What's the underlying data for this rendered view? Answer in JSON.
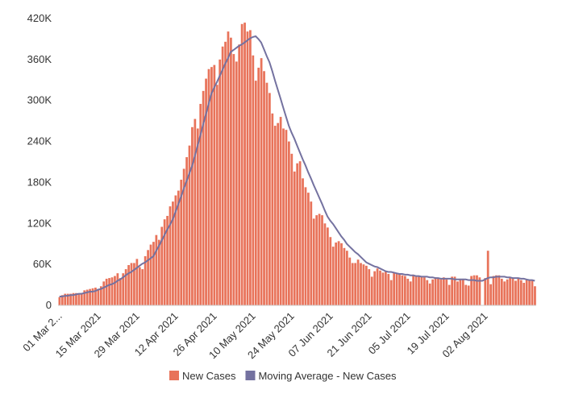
{
  "chart_data": {
    "type": "bar",
    "categories": [
      "01 Mar 2...",
      null,
      null,
      null,
      null,
      null,
      null,
      null,
      null,
      null,
      null,
      null,
      null,
      null,
      "15 Mar 2021",
      null,
      null,
      null,
      null,
      null,
      null,
      null,
      null,
      null,
      null,
      null,
      null,
      null,
      "29 Mar 2021",
      null,
      null,
      null,
      null,
      null,
      null,
      null,
      null,
      null,
      null,
      null,
      null,
      null,
      "12 Apr 2021",
      null,
      null,
      null,
      null,
      null,
      null,
      null,
      null,
      null,
      null,
      null,
      null,
      null,
      "26 Apr 2021",
      null,
      null,
      null,
      null,
      null,
      null,
      null,
      null,
      null,
      null,
      null,
      null,
      null,
      "10 May 2021",
      null,
      null,
      null,
      null,
      null,
      null,
      null,
      null,
      null,
      null,
      null,
      null,
      null,
      "24 May 2021",
      null,
      null,
      null,
      null,
      null,
      null,
      null,
      null,
      null,
      null,
      null,
      null,
      null,
      "07 Jun 2021",
      null,
      null,
      null,
      null,
      null,
      null,
      null,
      null,
      null,
      null,
      null,
      null,
      null,
      "21 Jun 2021",
      null,
      null,
      null,
      null,
      null,
      null,
      null,
      null,
      null,
      null,
      null,
      null,
      null,
      "05 Jul 2021",
      null,
      null,
      null,
      null,
      null,
      null,
      null,
      null,
      null,
      null,
      null,
      null,
      null,
      "19 Jul 2021",
      null,
      null,
      null,
      null,
      null,
      null,
      null,
      null,
      null,
      null,
      null,
      null,
      null,
      "02 Aug 2021",
      null,
      null,
      null,
      null,
      null,
      null,
      null,
      null,
      null,
      null,
      null,
      null,
      null,
      null,
      null,
      null,
      null,
      null
    ],
    "series": [
      {
        "name": "New Cases",
        "type": "bar",
        "color": "#e8735a",
        "values": [
          12000,
          15000,
          17000,
          17000,
          17000,
          18000,
          18000,
          16000,
          18000,
          22000,
          23000,
          24000,
          25000,
          26000,
          24000,
          28000,
          35000,
          39000,
          40000,
          41000,
          43000,
          47000,
          40000,
          47000,
          53000,
          59000,
          62000,
          62000,
          68000,
          56000,
          53000,
          72000,
          81000,
          89000,
          93000,
          103000,
          96000,
          115000,
          126000,
          131000,
          145000,
          152000,
          161000,
          168000,
          184000,
          200000,
          217000,
          234000,
          261000,
          273000,
          259000,
          295000,
          314000,
          332000,
          346000,
          349000,
          352000,
          323000,
          360000,
          379000,
          386000,
          401000,
          392000,
          368000,
          357000,
          382000,
          412000,
          414000,
          401000,
          403000,
          366000,
          329000,
          348000,
          362000,
          343000,
          326000,
          311000,
          281000,
          263000,
          267000,
          276000,
          259000,
          257000,
          240000,
          222000,
          196000,
          208000,
          211000,
          186000,
          173000,
          165000,
          152000,
          127000,
          132000,
          134000,
          132000,
          120000,
          114000,
          100000,
          86000,
          92000,
          94000,
          91000,
          84000,
          80000,
          70000,
          62000,
          62000,
          67000,
          62000,
          60000,
          58000,
          53000,
          42000,
          50000,
          54000,
          51000,
          48000,
          50000,
          46000,
          37000,
          48000,
          46000,
          47000,
          44000,
          43000,
          39000,
          35000,
          45000,
          43000,
          43000,
          42000,
          41000,
          37000,
          32000,
          38000,
          41000,
          39000,
          38000,
          41000,
          38000,
          30000,
          42000,
          42000,
          35000,
          39000,
          39000,
          30000,
          29000,
          43000,
          44000,
          44000,
          41000,
          0,
          40000,
          80000,
          31000,
          43000,
          44000,
          44000,
          39000,
          35000,
          38000,
          41000,
          40000,
          36000,
          40000,
          37000,
          33000,
          38000,
          37000,
          36000,
          28000
        ]
      },
      {
        "name": "Moving Average - New Cases",
        "type": "line",
        "color": "#7472a0",
        "values": [
          13000,
          13000,
          14000,
          14000,
          15000,
          15000,
          16000,
          17000,
          17000,
          18000,
          19000,
          20000,
          20000,
          21000,
          23000,
          24000,
          26000,
          28000,
          30000,
          31000,
          33000,
          36000,
          38000,
          41000,
          44000,
          47000,
          49000,
          52000,
          55000,
          58000,
          61000,
          63000,
          66000,
          69000,
          72000,
          80000,
          87000,
          95000,
          103000,
          111000,
          118000,
          126000,
          137000,
          148000,
          159000,
          171000,
          182000,
          193000,
          204000,
          219000,
          234000,
          249000,
          265000,
          280000,
          295000,
          310000,
          319000,
          327000,
          336000,
          345000,
          354000,
          362000,
          371000,
          374000,
          377000,
          380000,
          382000,
          385000,
          388000,
          391000,
          393000,
          394000,
          390000,
          385000,
          375000,
          365000,
          356000,
          343000,
          329000,
          316000,
          303000,
          289000,
          276000,
          263000,
          253000,
          244000,
          234000,
          224000,
          214000,
          205000,
          195000,
          186000,
          176000,
          167000,
          158000,
          149000,
          139000,
          130000,
          124000,
          119000,
          113000,
          107000,
          101000,
          96000,
          90000,
          86000,
          82000,
          78000,
          75000,
          71000,
          67000,
          63000,
          61000,
          59000,
          57000,
          56000,
          54000,
          52000,
          50000,
          49000,
          49000,
          48000,
          47000,
          46000,
          46000,
          45000,
          45000,
          44000,
          44000,
          43000,
          43000,
          42000,
          42000,
          42000,
          41000,
          41000,
          40000,
          40000,
          39000,
          39000,
          39000,
          39000,
          39000,
          38000,
          38000,
          38000,
          38000,
          38000,
          37000,
          37000,
          37000,
          36000,
          36000,
          36000,
          38000,
          40000,
          41000,
          41000,
          42000,
          42000,
          42000,
          42000,
          41000,
          41000,
          40000,
          40000,
          40000,
          39000,
          39000,
          38000,
          37000,
          37000,
          36000
        ]
      }
    ],
    "ylim": [
      0,
      420000
    ],
    "yticks": [
      0,
      {
        "value": 60000,
        "label": "60K"
      },
      {
        "value": 120000,
        "label": "120K"
      },
      {
        "value": 180000,
        "label": "180K"
      },
      {
        "value": 240000,
        "label": "240K"
      },
      {
        "value": 300000,
        "label": "300K"
      },
      {
        "value": 360000,
        "label": "360K"
      },
      {
        "value": 420000,
        "label": "420K"
      }
    ],
    "legend": "bottom"
  }
}
